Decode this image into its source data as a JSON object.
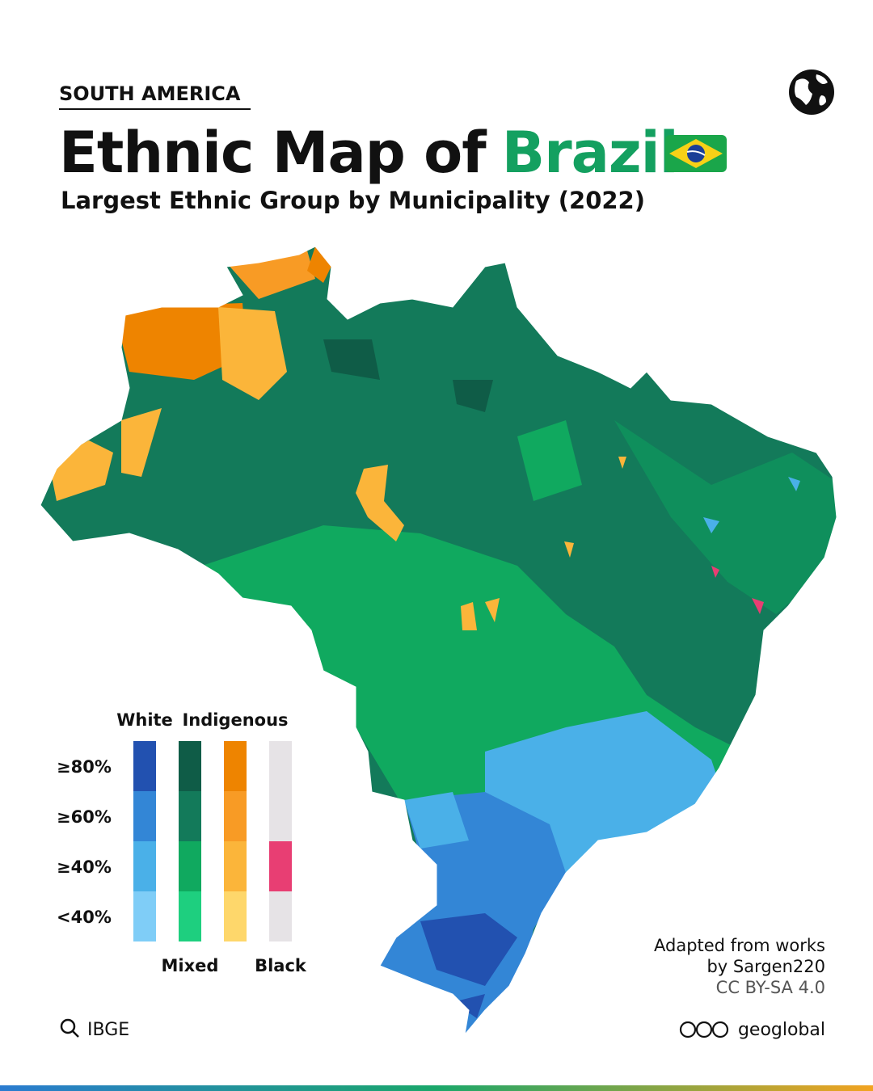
{
  "header": {
    "kicker": "SOUTH AMERICA",
    "title": "Ethnic Map of",
    "title_highlight": "Brazil",
    "subtitle": "Largest Ethnic Group by Municipality (2022)"
  },
  "legend": {
    "thresholds": [
      "≥80%",
      "≥60%",
      "≥40%",
      "<40%"
    ],
    "groups": [
      {
        "name": "White",
        "colors": [
          "#2251b0",
          "#3386d6",
          "#4ab0e8",
          "#7fcdf7"
        ]
      },
      {
        "name": "Mixed",
        "colors": [
          "#0f5c47",
          "#137a5a",
          "#10a95f",
          "#1ecf7f"
        ]
      },
      {
        "name": "Indigenous",
        "colors": [
          "#ee8400",
          "#f89b25",
          "#fbb53a",
          "#fed76b"
        ]
      },
      {
        "name": "Black",
        "colors": [
          null,
          null,
          "#e83e73",
          null
        ]
      }
    ]
  },
  "credit": {
    "line1": "Adapted from works",
    "line2": "by Sargen220",
    "license": "CC BY-SA 4.0"
  },
  "source": "IBGE",
  "brand": "geoglobal"
}
